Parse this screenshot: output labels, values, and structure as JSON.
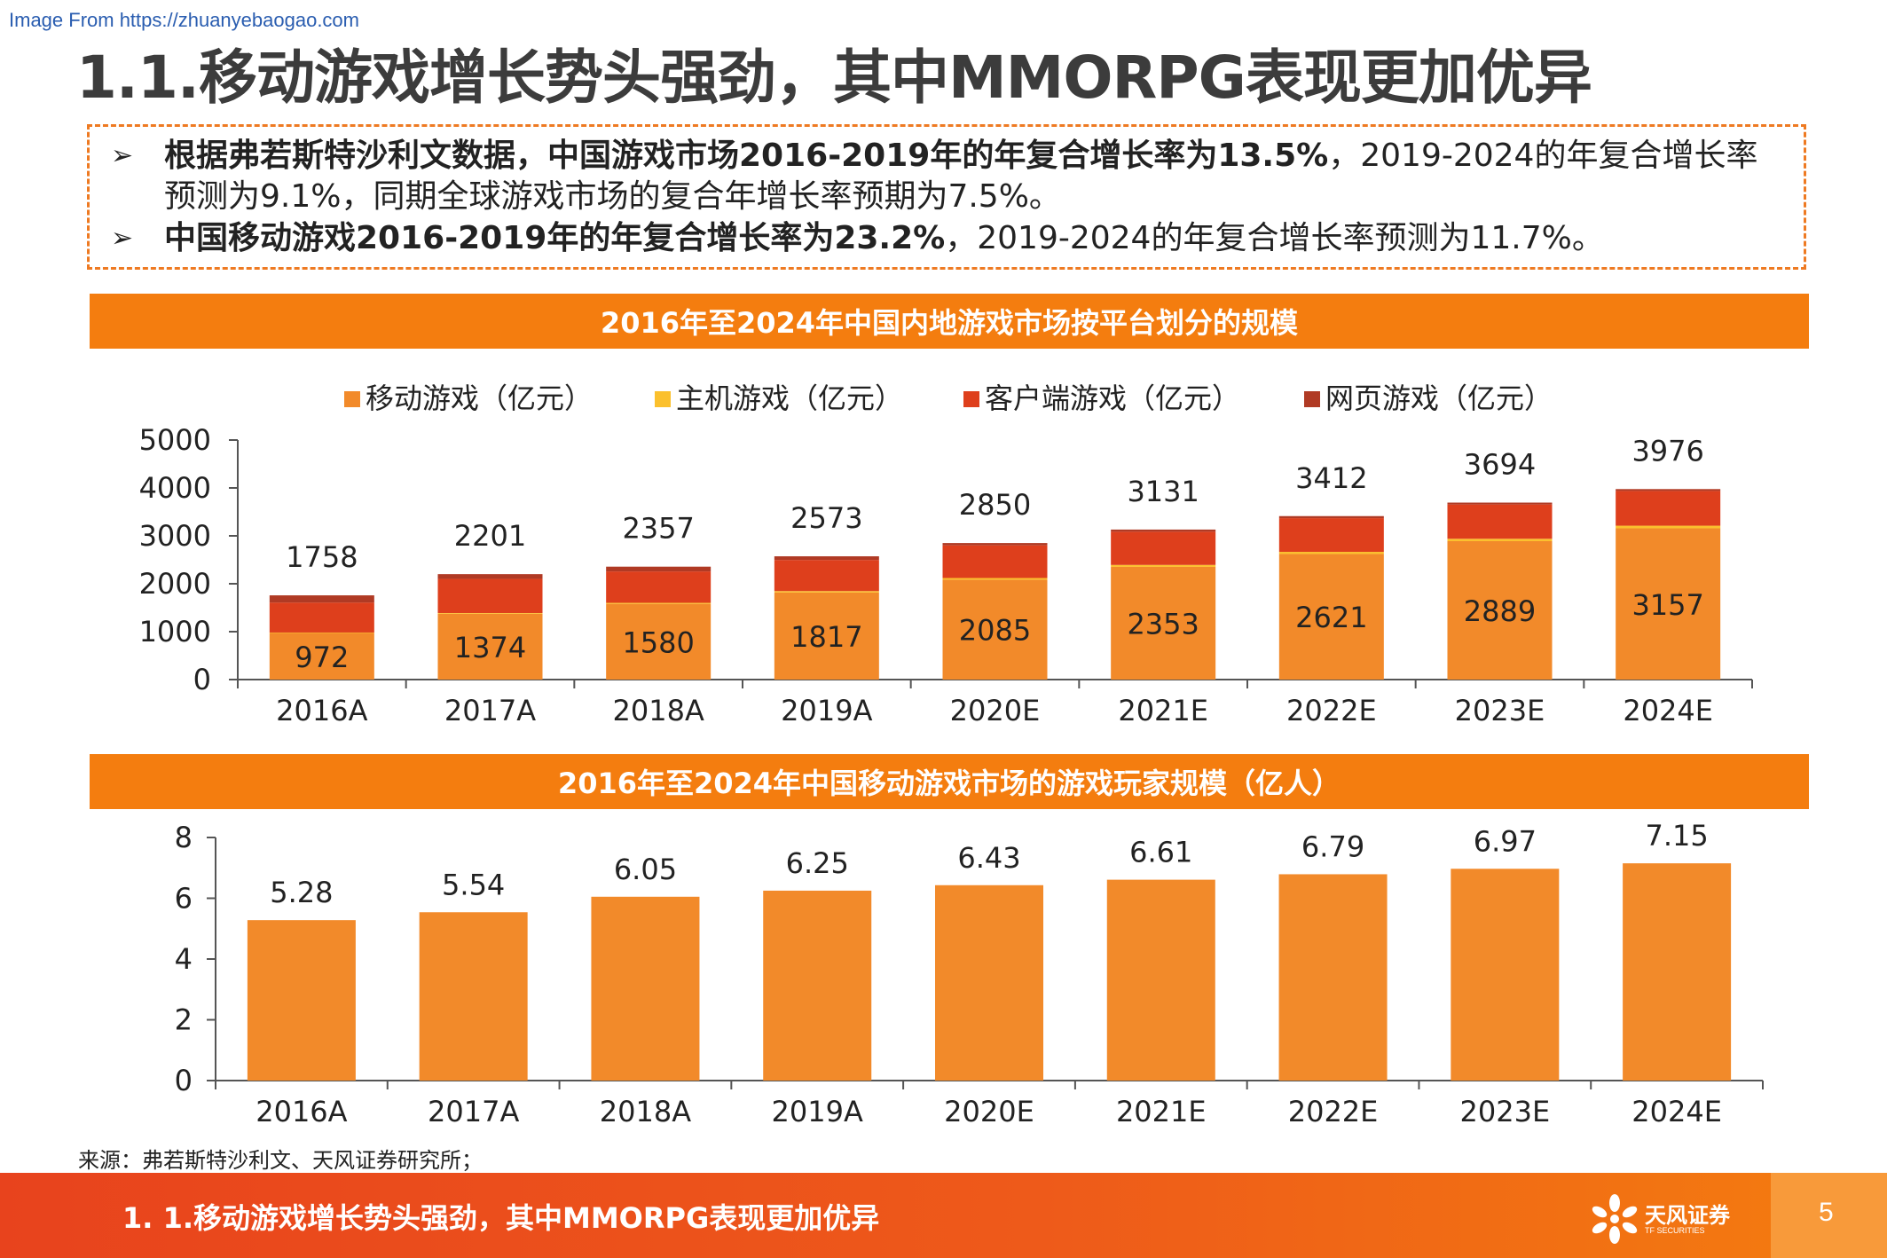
{
  "watermark": "Image From https://zhuanyebaogao.com",
  "title": "1.1.移动游戏增长势头强劲，其中MMORPG表现更加优异",
  "bullets": [
    {
      "bold": "根据弗若斯特沙利文数据，中国游戏市场2016-2019年的年复合增长率为13.5%",
      "rest": "，2019-2024的年复合增长率预测为9.1%，同期全球游戏市场的复合年增长率预期为7.5%。"
    },
    {
      "bold": "中国移动游戏2016-2019年的年复合增长率为23.2%",
      "rest": "，2019-2024的年复合增长率预测为11.7%。"
    }
  ],
  "section1_title": "2016年至2024年中国内地游戏市场按平台划分的规模",
  "section2_title": "2016年至2024年中国移动游戏市场的游戏玩家规模（亿人）",
  "source": "来源：弗若斯特沙利文、天风证券研究所；",
  "footer": {
    "text": "1. 1.移动游戏增长势头强劲，其中MMORPG表现更加优异",
    "logo_name": "天风证券",
    "logo_sub": "TF SECURITIES",
    "page": "5"
  },
  "colors": {
    "accent": "#f47d0f",
    "mobile": "#f28a2a",
    "console": "#fbc02d",
    "pc": "#de3f1c",
    "web": "#b03a24"
  },
  "chart_data": [
    {
      "type": "bar",
      "stacked": true,
      "title": "2016年至2024年中国内地游戏市场按平台划分的规模",
      "categories": [
        "2016A",
        "2017A",
        "2018A",
        "2019A",
        "2020E",
        "2021E",
        "2022E",
        "2023E",
        "2024E"
      ],
      "series": [
        {
          "name": "移动游戏（亿元）",
          "values": [
            972,
            1374,
            1580,
            1817,
            2085,
            2353,
            2621,
            2889,
            3157
          ]
        },
        {
          "name": "主机游戏（亿元）",
          "values": [
            10,
            15,
            22,
            30,
            35,
            40,
            45,
            50,
            55
          ]
        },
        {
          "name": "客户端游戏（亿元）",
          "values": [
            626,
            712,
            655,
            650,
            680,
            693,
            703,
            715,
            725
          ]
        },
        {
          "name": "网页游戏（亿元）",
          "values": [
            150,
            100,
            100,
            76,
            50,
            45,
            43,
            40,
            39
          ]
        }
      ],
      "totals": [
        1758,
        2201,
        2357,
        2573,
        2850,
        3131,
        3412,
        3694,
        3976
      ],
      "ylim": [
        0,
        5000
      ],
      "yticks": [
        0,
        1000,
        2000,
        3000,
        4000,
        5000
      ],
      "legend": "top"
    },
    {
      "type": "bar",
      "title": "2016年至2024年中国移动游戏市场的游戏玩家规模（亿人）",
      "categories": [
        "2016A",
        "2017A",
        "2018A",
        "2019A",
        "2020E",
        "2021E",
        "2022E",
        "2023E",
        "2024E"
      ],
      "values": [
        5.28,
        5.54,
        6.05,
        6.25,
        6.43,
        6.61,
        6.79,
        6.97,
        7.15
      ],
      "ylim": [
        0,
        8
      ],
      "yticks": [
        0,
        2,
        4,
        6,
        8
      ]
    }
  ]
}
